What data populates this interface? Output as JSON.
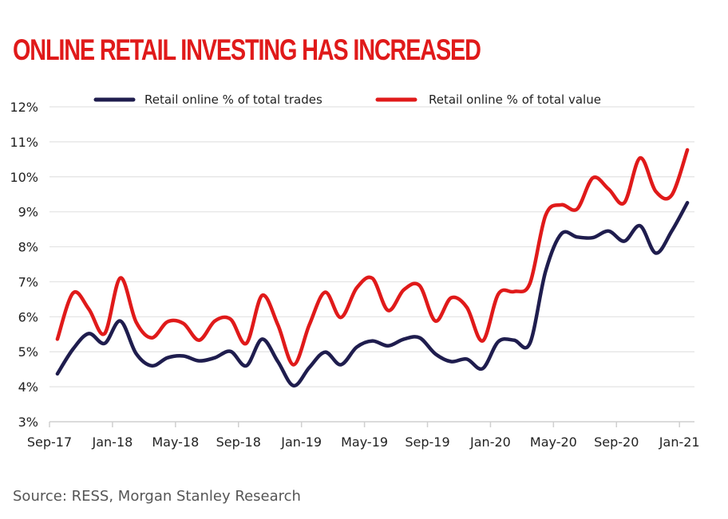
{
  "chart_data": {
    "type": "line",
    "title": "ONLINE RETAIL INVESTING HAS INCREASED",
    "xlabel": "",
    "ylabel": "",
    "x_tick_labels": [
      "Sep-17",
      "Jan-18",
      "May-18",
      "Sep-18",
      "Jan-19",
      "May-19",
      "Sep-19",
      "Jan-20",
      "May-20",
      "Sep-20",
      "Jan-21"
    ],
    "x": [
      "Sep-17",
      "Oct-17",
      "Nov-17",
      "Dec-17",
      "Jan-18",
      "Feb-18",
      "Mar-18",
      "Apr-18",
      "May-18",
      "Jun-18",
      "Jul-18",
      "Aug-18",
      "Sep-18",
      "Oct-18",
      "Nov-18",
      "Dec-18",
      "Jan-19",
      "Feb-19",
      "Mar-19",
      "Apr-19",
      "May-19",
      "Jun-19",
      "Jul-19",
      "Aug-19",
      "Sep-19",
      "Oct-19",
      "Nov-19",
      "Dec-19",
      "Jan-20",
      "Feb-20",
      "Mar-20",
      "Apr-20",
      "May-20",
      "Jun-20",
      "Jul-20",
      "Aug-20",
      "Sep-20",
      "Oct-20",
      "Nov-20",
      "Dec-20",
      "Jan-21"
    ],
    "y_tick_labels": [
      "3%",
      "4%",
      "5%",
      "6%",
      "7%",
      "8%",
      "9%",
      "10%",
      "11%",
      "12%"
    ],
    "ylim": [
      3,
      12
    ],
    "y_unit": "%",
    "grid": true,
    "legend_position": "top",
    "series": [
      {
        "name": "Retail online % of total trades",
        "color": "#1f1d4e",
        "values": [
          4.37,
          5.08,
          5.52,
          5.24,
          5.88,
          4.95,
          4.6,
          4.83,
          4.88,
          4.74,
          4.83,
          5.01,
          4.6,
          5.36,
          4.72,
          4.03,
          4.55,
          4.99,
          4.63,
          5.13,
          5.31,
          5.17,
          5.36,
          5.4,
          4.94,
          4.72,
          4.79,
          4.52,
          5.29,
          5.33,
          5.24,
          7.3,
          8.37,
          8.28,
          8.26,
          8.45,
          8.16,
          8.6,
          7.82,
          8.44,
          9.26
        ]
      },
      {
        "name": "Retail online % of total value",
        "color": "#e01a1a",
        "values": [
          5.36,
          6.68,
          6.22,
          5.52,
          7.11,
          5.85,
          5.4,
          5.86,
          5.81,
          5.33,
          5.88,
          5.93,
          5.24,
          6.61,
          5.77,
          4.63,
          5.77,
          6.7,
          5.98,
          6.82,
          7.1,
          6.18,
          6.77,
          6.89,
          5.88,
          6.54,
          6.27,
          5.31,
          6.65,
          6.72,
          6.95,
          8.9,
          9.2,
          9.08,
          9.97,
          9.65,
          9.26,
          10.54,
          9.58,
          9.47,
          10.77
        ]
      }
    ],
    "source": "Source: RESS, Morgan Stanley Research"
  },
  "colors": {
    "title": "#e01a1a",
    "gridline": "#e3e3e3",
    "axis": "#cfcfcf",
    "source_text": "#555555"
  }
}
